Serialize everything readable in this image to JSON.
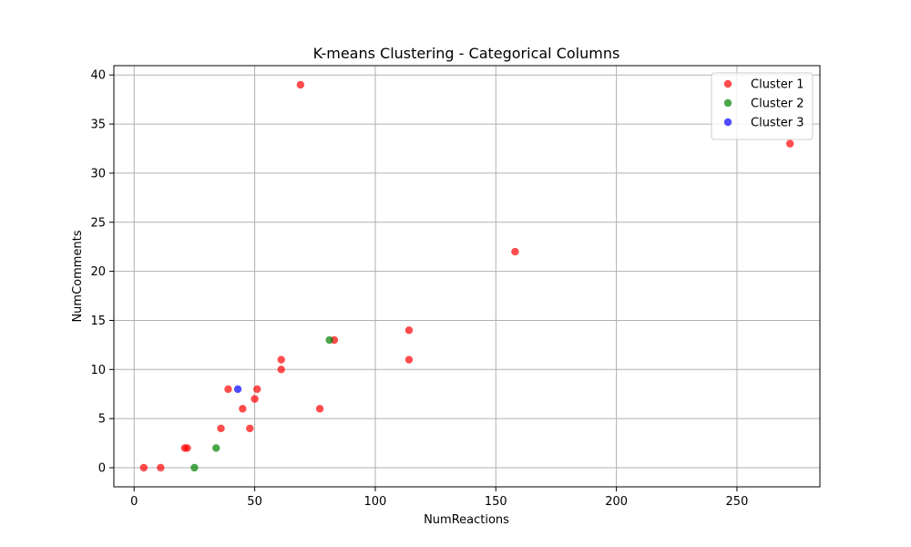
{
  "chart_data": {
    "type": "scatter",
    "title": "K-means Clustering - Categorical Columns",
    "xlabel": "NumReactions",
    "ylabel": "NumComments",
    "xlim": [
      -8.4,
      284.4
    ],
    "ylim": [
      -1.95,
      40.95
    ],
    "xticks": [
      0,
      50,
      100,
      150,
      200,
      250
    ],
    "yticks": [
      0,
      5,
      10,
      15,
      20,
      25,
      30,
      35,
      40
    ],
    "grid": true,
    "legend_position": "top-right",
    "series": [
      {
        "name": "Cluster 1",
        "color": "#ff0000",
        "points": [
          [
            4,
            0
          ],
          [
            11,
            0
          ],
          [
            21,
            2
          ],
          [
            22,
            2
          ],
          [
            36,
            4
          ],
          [
            39,
            8
          ],
          [
            45,
            6
          ],
          [
            48,
            4
          ],
          [
            50,
            7
          ],
          [
            51,
            8
          ],
          [
            61,
            10
          ],
          [
            61,
            11
          ],
          [
            69,
            39
          ],
          [
            77,
            6
          ],
          [
            83,
            13
          ],
          [
            114,
            14
          ],
          [
            114,
            11
          ],
          [
            158,
            22
          ],
          [
            272,
            33
          ]
        ]
      },
      {
        "name": "Cluster 2",
        "color": "#008000",
        "points": [
          [
            25,
            0
          ],
          [
            34,
            2
          ],
          [
            81,
            13
          ]
        ]
      },
      {
        "name": "Cluster 3",
        "color": "#0000ff",
        "points": [
          [
            43,
            8
          ]
        ]
      }
    ]
  }
}
